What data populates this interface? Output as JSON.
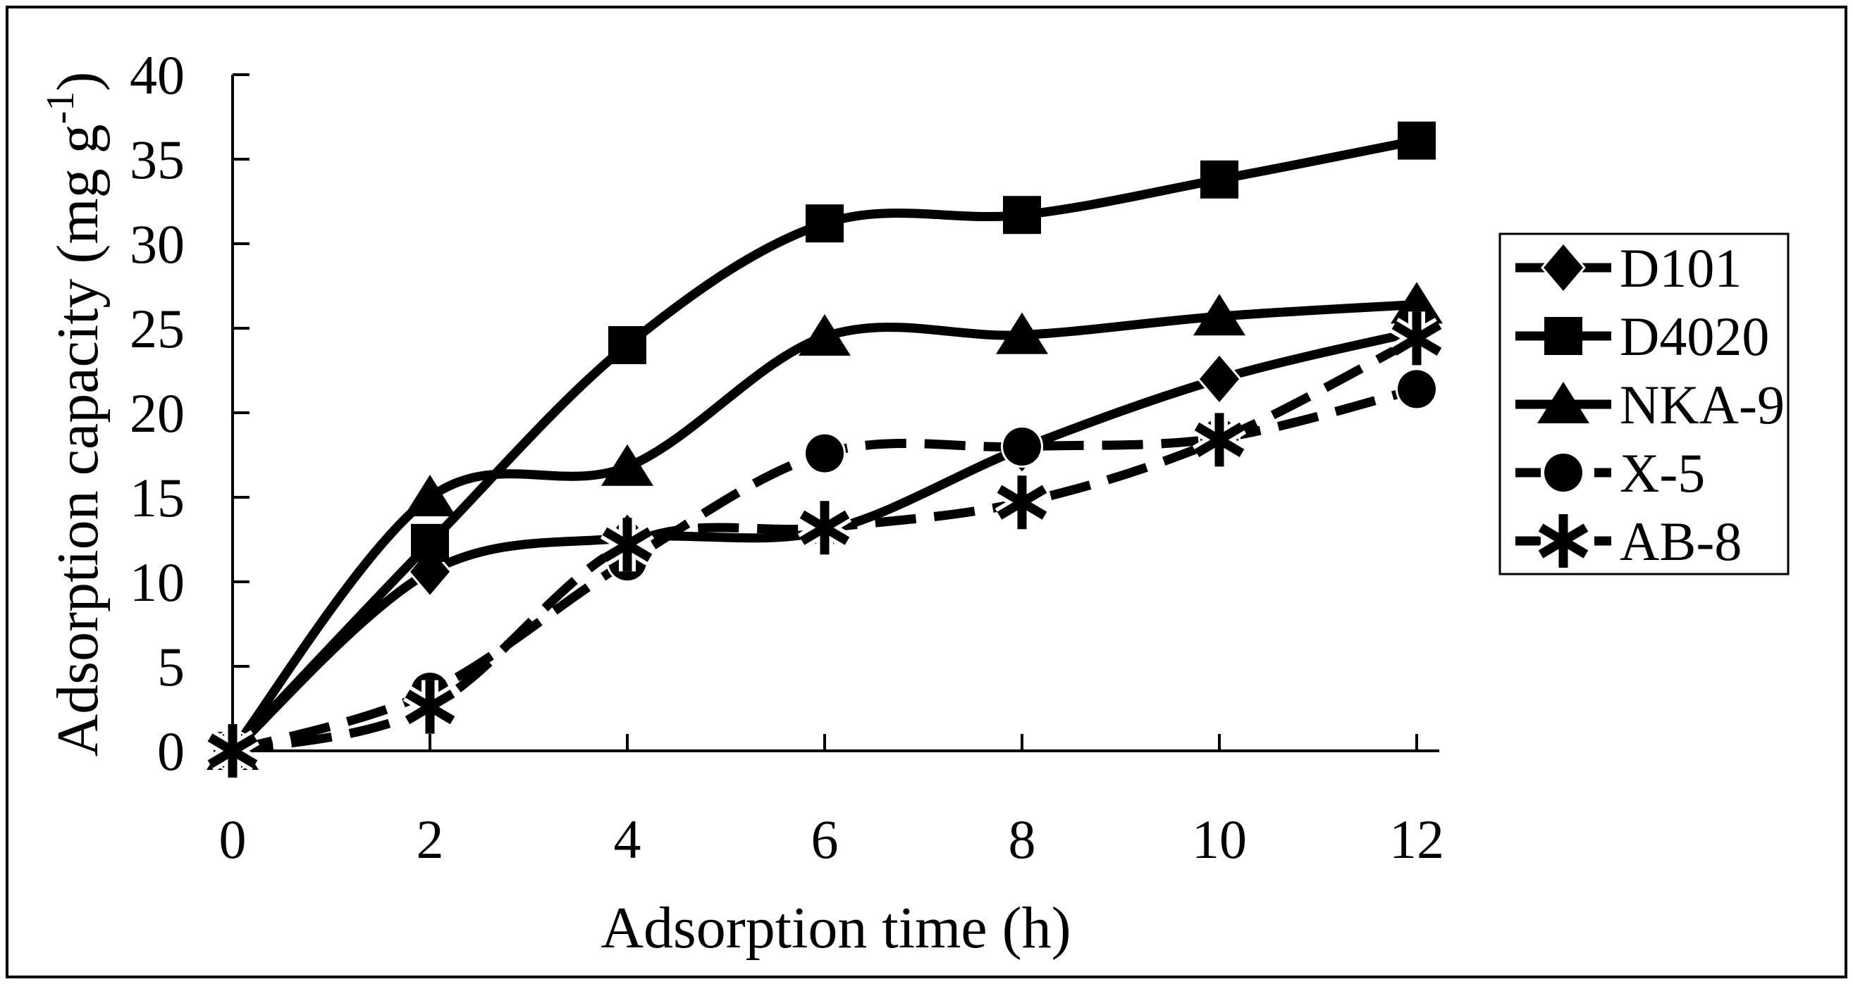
{
  "chart_data": {
    "type": "line",
    "title": "",
    "xlabel": "Adsorption time (h)",
    "ylabel": "Adsorption capacity (mg g⁻¹)",
    "ylabel_parts": {
      "base": "Adsorption capacity (mg g",
      "sup": "-1",
      "close": ")"
    },
    "x": [
      0,
      2,
      4,
      6,
      8,
      10,
      12
    ],
    "xticks": [
      "0",
      "2",
      "4",
      "6",
      "8",
      "10",
      "12"
    ],
    "yticks": [
      "0",
      "5",
      "10",
      "15",
      "20",
      "25",
      "30",
      "35",
      "40"
    ],
    "xlim": [
      0,
      12.2
    ],
    "ylim": [
      0,
      40
    ],
    "grid": false,
    "legend_position": "right",
    "series_color": "#000000",
    "background": "#ffffff",
    "series": [
      {
        "name": "D101",
        "marker": "diamond",
        "line_style": "solid",
        "values": [
          0,
          10.6,
          12.6,
          13.0,
          17.9,
          22.0,
          24.8
        ]
      },
      {
        "name": "D4020",
        "marker": "square",
        "line_style": "solid",
        "values": [
          0,
          12.3,
          24.0,
          31.2,
          31.7,
          33.8,
          36.1
        ]
      },
      {
        "name": "NKA-9",
        "marker": "triangle",
        "line_style": "solid",
        "values": [
          0,
          15.0,
          16.8,
          24.5,
          24.6,
          25.7,
          26.4
        ]
      },
      {
        "name": "X-5",
        "marker": "circle",
        "line_style": "dashed",
        "values": [
          0,
          3.5,
          11.2,
          17.6,
          18.0,
          18.5,
          21.4
        ]
      },
      {
        "name": "AB-8",
        "marker": "asterisk",
        "line_style": "dashed",
        "values": [
          0,
          2.6,
          12.2,
          13.2,
          14.7,
          18.4,
          24.4
        ]
      }
    ]
  }
}
